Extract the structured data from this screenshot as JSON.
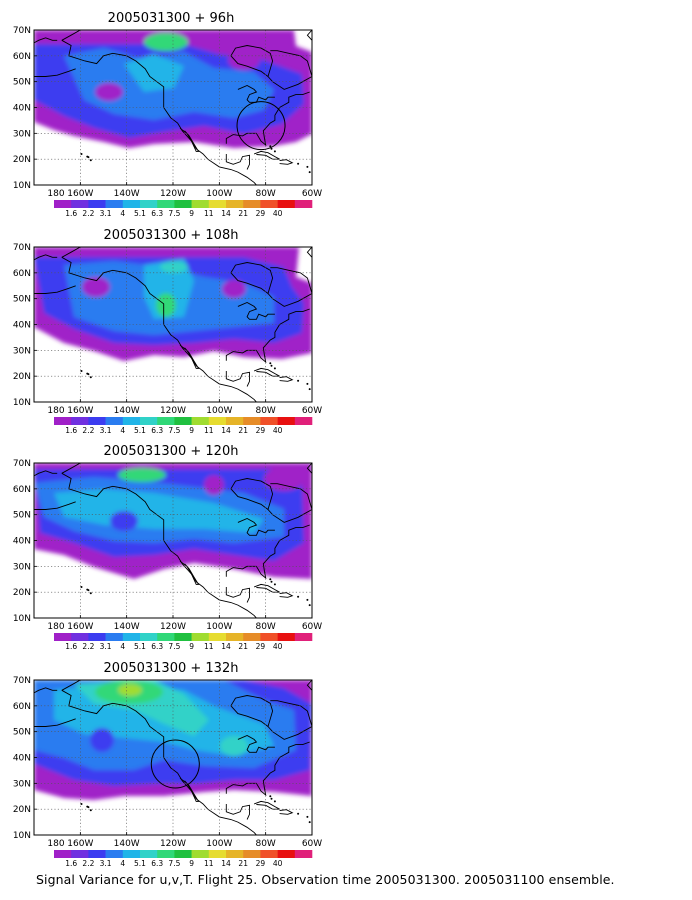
{
  "panels": [
    {
      "title": "2005031300 + 96h",
      "circle": true,
      "lead_hours": 96
    },
    {
      "title": "2005031300 + 108h",
      "circle": false,
      "lead_hours": 108
    },
    {
      "title": "2005031300 + 120h",
      "circle": false,
      "lead_hours": 120
    },
    {
      "title": "2005031300 + 132h",
      "circle": true,
      "lead_hours": 132
    }
  ],
  "lat_labels": [
    "70N",
    "60N",
    "50N",
    "40N",
    "30N",
    "20N",
    "10N"
  ],
  "lon_labels": [
    "180",
    "160W",
    "140W",
    "120W",
    "100W",
    "80W",
    "60W"
  ],
  "colorbar": {
    "labels": [
      "1.6",
      "2.2",
      "3.1",
      "4",
      "5.1",
      "6.3",
      "7.5",
      "9",
      "11",
      "14",
      "21",
      "29",
      "40"
    ],
    "colors": [
      "#a020c8",
      "#7030e0",
      "#3c3cf0",
      "#2a7cf0",
      "#20b4e8",
      "#30d2c8",
      "#30d878",
      "#20c040",
      "#a0dc30",
      "#e6dc30",
      "#e6b428",
      "#e68c28",
      "#f05028",
      "#e81010",
      "#e0207a"
    ]
  },
  "caption": "Signal Variance for u,v,T. Flight 25. Observation time 2005031300. 2005031100 ensemble."
}
